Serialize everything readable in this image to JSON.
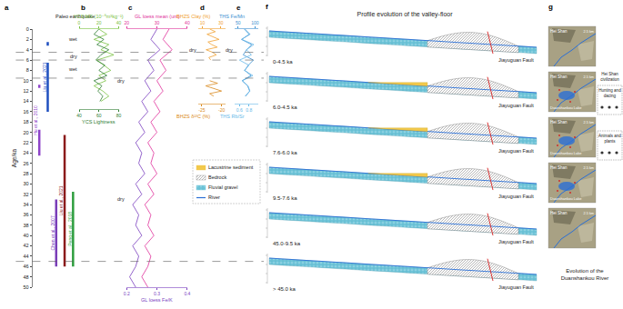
{
  "chart_data": {
    "type": "line",
    "y_label": "Age/ka",
    "ylim": [
      50,
      0
    ],
    "yticks": [
      0,
      2,
      4,
      6,
      8,
      10,
      12,
      14,
      16,
      18,
      20,
      22,
      24,
      26,
      28,
      30,
      32,
      34,
      36,
      38,
      40,
      42,
      44,
      46,
      48,
      50
    ],
    "boundaries": [
      4.5,
      6.0,
      9.5,
      45.0
    ],
    "earthquakes": {
      "letter": "a",
      "title": "Paleo earthquake",
      "series": [
        {
          "name": "Hu et al., 2010",
          "color": "#8e44c9",
          "ranges": [
            [
              10.8,
              11.4
            ],
            [
              19.5,
              24.5
            ]
          ]
        },
        {
          "name": "Liu et al., 2021",
          "color": "#1f4fbf",
          "ranges": [
            [
              2.5,
              3.2
            ],
            [
              6.5,
              16
            ]
          ]
        },
        {
          "name": "Chen et al., 2007",
          "color": "#7a3db8",
          "ranges": [
            [
              33,
              46
            ]
          ]
        },
        {
          "name": "Liu et al., 2021",
          "color": "#8b1a1a",
          "ranges": [
            [
              20.5,
              46
            ]
          ]
        },
        {
          "name": "Peng et al., 2018",
          "color": "#2e9e3e",
          "ranges": [
            [
              31.5,
              46
            ]
          ]
        }
      ]
    },
    "panels": [
      {
        "letter": "b",
        "series": [
          {
            "name": "YCS MS (10⁻⁸m³kg⁻¹)",
            "color": "#7ac143",
            "xlim": [
              0,
              40
            ],
            "xticks": [
              0,
              20,
              40
            ],
            "ages": [
              0,
              1,
              2,
              3,
              4,
              5,
              6,
              7,
              8,
              9,
              10,
              11,
              12,
              13,
              14
            ],
            "values": [
              20,
              28,
              15,
              30,
              22,
              35,
              18,
              25,
              32,
              20,
              27,
              15,
              24,
              30,
              22
            ]
          },
          {
            "name": "YCS Lightness",
            "color": "#2e7d32",
            "xlim": [
              40,
              80
            ],
            "xticks": [
              40,
              60,
              80
            ],
            "ages": [
              0,
              1,
              2,
              3,
              4,
              5,
              6,
              7,
              8,
              9,
              10,
              11,
              12,
              13,
              14
            ],
            "values": [
              60,
              55,
              65,
              58,
              70,
              62,
              57,
              66,
              60,
              68,
              55,
              63,
              59,
              64,
              61
            ]
          }
        ],
        "notes": [
          {
            "text": "wet",
            "age": 2
          },
          {
            "text": "dry",
            "age": 5.2
          },
          {
            "text": "wet",
            "age": 7.8
          }
        ]
      },
      {
        "letter": "c",
        "series": [
          {
            "name": "GL loess mean (um)",
            "color": "#e0309a",
            "xlim": [
              20,
              40
            ],
            "xticks": [
              20,
              30,
              40
            ],
            "ages": [
              0,
              2,
              4,
              6,
              8,
              10,
              12,
              14,
              16,
              18,
              20,
              22,
              24,
              26,
              28,
              30,
              32,
              34,
              36,
              38,
              40,
              42,
              44,
              46,
              48,
              50
            ],
            "values": [
              34,
              32,
              35,
              31,
              33,
              30,
              32,
              29,
              31,
              28,
              30,
              27,
              29,
              28,
              30,
              27,
              29,
              26,
              28,
              27,
              29,
              26,
              28,
              27,
              25,
              27
            ]
          },
          {
            "name": "GL loess Fe/K",
            "color": "#7a3fbf",
            "xlim": [
              0.2,
              0.4
            ],
            "xticks": [
              0.2,
              0.3,
              0.4
            ],
            "ages": [
              0,
              2,
              4,
              6,
              8,
              10,
              12,
              14,
              16,
              18,
              20,
              22,
              24,
              26,
              28,
              30,
              32,
              34,
              36,
              38,
              40,
              42,
              44,
              46,
              48,
              50
            ],
            "values": [
              0.3,
              0.28,
              0.31,
              0.27,
              0.29,
              0.26,
              0.28,
              0.25,
              0.27,
              0.24,
              0.26,
              0.23,
              0.25,
              0.24,
              0.26,
              0.23,
              0.25,
              0.22,
              0.24,
              0.23,
              0.25,
              0.22,
              0.24,
              0.23,
              0.21,
              0.23
            ]
          }
        ],
        "notes": [
          {
            "text": "dry",
            "age": 10
          },
          {
            "text": "dry",
            "age": 33
          }
        ]
      },
      {
        "letter": "d",
        "series": [
          {
            "name": "BHZS Clay (%)",
            "color": "#f0a030",
            "xlim": [
              5,
              35
            ],
            "xticks": [
              10,
              30
            ],
            "ages": [
              0,
              0.5,
              1,
              1.5,
              2,
              2.5,
              3,
              3.5,
              4,
              4.5,
              5,
              5.5,
              6
            ],
            "values": [
              18,
              24,
              15,
              22,
              28,
              16,
              20,
              26,
              14,
              21,
              25,
              17,
              19
            ]
          },
          {
            "name": "BHZS δ¹³C (%)",
            "color": "#d98a20",
            "xlim": [
              -26,
              -19
            ],
            "xticks": [
              -25,
              -20
            ],
            "ages": [
              10,
              10.5,
              11,
              11.5,
              12,
              12.5,
              13
            ],
            "values": [
              -23,
              -21,
              -24,
              -22,
              -20,
              -23,
              -22
            ]
          }
        ],
        "notes": [
          {
            "text": "dry",
            "age": 4
          }
        ]
      },
      {
        "letter": "e",
        "series": [
          {
            "name": "THS Fe/Mn",
            "color": "#3a8fd0",
            "xlim": [
              40,
              110
            ],
            "xticks": [
              50,
              100
            ],
            "ages": [
              0,
              1,
              2,
              3,
              4,
              5,
              6,
              7,
              8,
              9,
              10,
              11,
              12,
              13
            ],
            "values": [
              70,
              85,
              60,
              90,
              75,
              65,
              95,
              80,
              70,
              88,
              62,
              78,
              84,
              72
            ]
          },
          {
            "name": "THS Rb/Sr",
            "color": "#66b8e8",
            "xlim": [
              0.5,
              1.0
            ],
            "xticks": [
              0.6,
              0.8
            ],
            "ages": [
              0,
              1,
              2,
              3,
              4,
              5,
              6,
              7,
              8,
              9,
              10,
              11,
              12,
              13
            ],
            "values": [
              0.7,
              0.8,
              0.65,
              0.9,
              0.75,
              0.85,
              0.6,
              0.8,
              0.7,
              0.88,
              0.66,
              0.78,
              0.82,
              0.72
            ]
          }
        ],
        "notes": [
          {
            "text": "dry",
            "age": 4
          }
        ]
      }
    ]
  },
  "legend_items": [
    {
      "label": "Lacustrine sediment",
      "color": "#f2c94c"
    },
    {
      "label": "Bedrock",
      "color": "#8a8a8a"
    },
    {
      "label": "Fluvial gravel",
      "color": "#6fc5d9"
    },
    {
      "label": "River",
      "color": "#2a6fd6"
    }
  ],
  "profiles": {
    "letter": "f",
    "title": "Profile evolution of the valley-floor",
    "fault_label": "Jiayuguan Fault",
    "fault_color": "#d62020",
    "stages": [
      {
        "label": "0-4.5 ka",
        "lake": false
      },
      {
        "label": "6.0-4.5 ka",
        "lake": true
      },
      {
        "label": "7.6-6.0 ka",
        "lake": true
      },
      {
        "label": "9.5-7.6 ka",
        "lake": true
      },
      {
        "label": "45.0-9.5 ka",
        "lake": false
      },
      {
        "label": "> 45.0 ka",
        "lake": false
      }
    ]
  },
  "maps": {
    "letter": "g",
    "scale": "2.5 km",
    "panels": [
      {
        "labels": [
          "Hei Shan"
        ]
      },
      {
        "labels": [
          "Hei Shan",
          "Duanshankou Lake"
        ]
      },
      {
        "labels": [
          "Hei Shan",
          "Duanshankou Lake"
        ]
      },
      {
        "labels": [
          "Hei Shan",
          "Duanshankou Lake"
        ]
      },
      {
        "labels": [
          "Hei Shan"
        ]
      }
    ],
    "notes": [
      "Hei Shan civilization",
      "Hunting and dacing",
      "Animals and plants"
    ],
    "title_lines": [
      "Evolution of the",
      "Duanshankou River"
    ]
  }
}
